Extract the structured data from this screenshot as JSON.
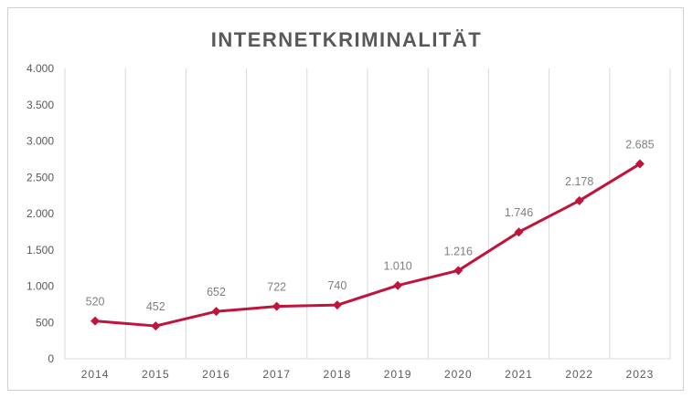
{
  "chart_data": {
    "type": "line",
    "title": "INTERNETKRIMINALITÄT",
    "categories": [
      "2014",
      "2015",
      "2016",
      "2017",
      "2018",
      "2019",
      "2020",
      "2021",
      "2022",
      "2023"
    ],
    "series": [
      {
        "values": [
          520,
          452,
          652,
          722,
          740,
          1010,
          1216,
          1746,
          2178,
          2685
        ],
        "labels": [
          "520",
          "452",
          "652",
          "722",
          "740",
          "1.010",
          "1.216",
          "1.746",
          "2.178",
          "2.685"
        ],
        "color": "#c0143c"
      }
    ],
    "ylim": [
      0,
      4000
    ],
    "yticks": [
      {
        "value": 0,
        "label": "0"
      },
      {
        "value": 500,
        "label": "500"
      },
      {
        "value": 1000,
        "label": "1.000"
      },
      {
        "value": 1500,
        "label": "1.500"
      },
      {
        "value": 2000,
        "label": "2.000"
      },
      {
        "value": 2500,
        "label": "2.500"
      },
      {
        "value": 3000,
        "label": "3.000"
      },
      {
        "value": 3500,
        "label": "3.500"
      },
      {
        "value": 4000,
        "label": "4.000"
      }
    ],
    "grid": "vertical",
    "legend": "none",
    "marker": "diamond"
  }
}
